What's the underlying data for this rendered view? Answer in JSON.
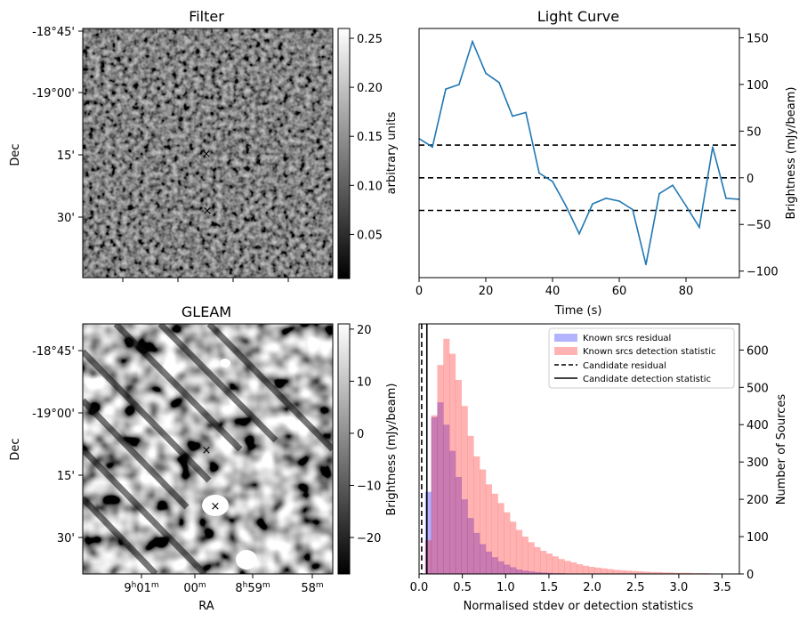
{
  "colors": {
    "line": "#1f77b4",
    "known_residual": "#b3b3ff",
    "known_detection": "#ffb3b3",
    "candidate_marker": "#ff0000",
    "known_marker": "#0000ff"
  },
  "panels": {
    "filter": {
      "title": "Filter",
      "ylabel": "Dec",
      "dec_ticks": [
        "-18°45'",
        "-19°00'",
        "15'",
        "30'"
      ],
      "colorbar": {
        "label": "arbitrary units",
        "ticks": [
          "0.25",
          "0.20",
          "0.15",
          "0.10",
          "0.05"
        ],
        "tick_values": [
          0.25,
          0.2,
          0.15,
          0.1,
          0.05
        ],
        "range": [
          0.005,
          0.26
        ]
      },
      "markers": {
        "candidate": "×",
        "known": "×"
      }
    },
    "gleam": {
      "title": "GLEAM",
      "ylabel": "Dec",
      "xlabel": "RA",
      "dec_ticks": [
        "-18°45'",
        "-19°00'",
        "15'",
        "30'"
      ],
      "ra_ticks": [
        {
          "hours": "9",
          "h": "h",
          "minutes": "01",
          "m": "m"
        },
        {
          "hours": "",
          "h": "",
          "minutes": "00",
          "m": "m"
        },
        {
          "hours": "8",
          "h": "h",
          "minutes": "59",
          "m": "m"
        },
        {
          "hours": "",
          "h": "",
          "minutes": "58",
          "m": "m"
        }
      ],
      "colorbar": {
        "label": "Brightness (mJy/beam)",
        "ticks": [
          "20",
          "10",
          "0",
          "−10",
          "−20"
        ],
        "tick_values": [
          20,
          10,
          0,
          -10,
          -20
        ],
        "range": [
          -27,
          21
        ]
      },
      "markers": {
        "candidate": "×",
        "known": "×"
      }
    }
  },
  "chart_data": [
    {
      "type": "line",
      "title": "Light Curve",
      "xlabel": "Time (s)",
      "ylabel": "Brightness (mJy/beam)",
      "xlim": [
        0,
        96
      ],
      "ylim": [
        -107,
        160
      ],
      "xticks": [
        0,
        20,
        40,
        60,
        80
      ],
      "yticks": [
        150,
        100,
        50,
        0,
        -50,
        -100
      ],
      "ytick_labels": [
        "150",
        "100",
        "50",
        "0",
        "−50",
        "−100"
      ],
      "x": [
        0,
        4,
        8,
        12,
        16,
        20,
        24,
        28,
        32,
        36,
        40,
        44,
        48,
        52,
        56,
        60,
        64,
        68,
        72,
        76,
        80,
        84,
        88,
        92,
        96
      ],
      "y": [
        42,
        33,
        95,
        100,
        146,
        112,
        102,
        66,
        70,
        5,
        -4,
        -30,
        -60,
        -28,
        -22,
        -25,
        -34,
        -93,
        -17,
        -8,
        -30,
        -53,
        33,
        -22,
        -23
      ],
      "hlines": [
        35,
        0,
        -35
      ]
    },
    {
      "type": "histogram",
      "xlabel": "Normalised stdev or detection statistics",
      "ylabel": "Number of Sources",
      "xlim": [
        0,
        3.7
      ],
      "ylim": [
        0,
        670
      ],
      "xticks": [
        0.0,
        0.5,
        1.0,
        1.5,
        2.0,
        2.5,
        3.0,
        3.5
      ],
      "xtick_labels": [
        "0.0",
        "0.5",
        "1.0",
        "1.5",
        "2.0",
        "2.5",
        "3.0",
        "3.5"
      ],
      "yticks": [
        0,
        100,
        200,
        300,
        400,
        500,
        600
      ],
      "bin_start": 0.0,
      "bin_width": 0.07,
      "series": [
        {
          "name": "Known srcs residual",
          "values": [
            0,
            220,
            420,
            460,
            400,
            330,
            260,
            200,
            150,
            110,
            80,
            60,
            45,
            34,
            25,
            18,
            12,
            9,
            7,
            5,
            4,
            3,
            2,
            2,
            1,
            1,
            1,
            0,
            0,
            0,
            0,
            0,
            0,
            0,
            0,
            0,
            0,
            0,
            0,
            0,
            0,
            0,
            0,
            0,
            0,
            0,
            0,
            0,
            0,
            0,
            0,
            0
          ]
        },
        {
          "name": "Known srcs detection statistic",
          "values": [
            0,
            90,
            425,
            560,
            630,
            590,
            520,
            450,
            370,
            315,
            280,
            240,
            215,
            190,
            165,
            140,
            118,
            100,
            85,
            72,
            62,
            55,
            47,
            40,
            35,
            31,
            26,
            22,
            19,
            17,
            15,
            13,
            11,
            10,
            9,
            8,
            7,
            6,
            5,
            5,
            4,
            4,
            3,
            3,
            3,
            2,
            2,
            2,
            1,
            1,
            1,
            1
          ]
        }
      ],
      "vlines": [
        {
          "name": "Candidate residual",
          "x": 0.03,
          "style": "dashed"
        },
        {
          "name": "Candidate detection statistic",
          "x": 0.09,
          "style": "solid"
        }
      ],
      "legend_position": "top-right"
    }
  ]
}
